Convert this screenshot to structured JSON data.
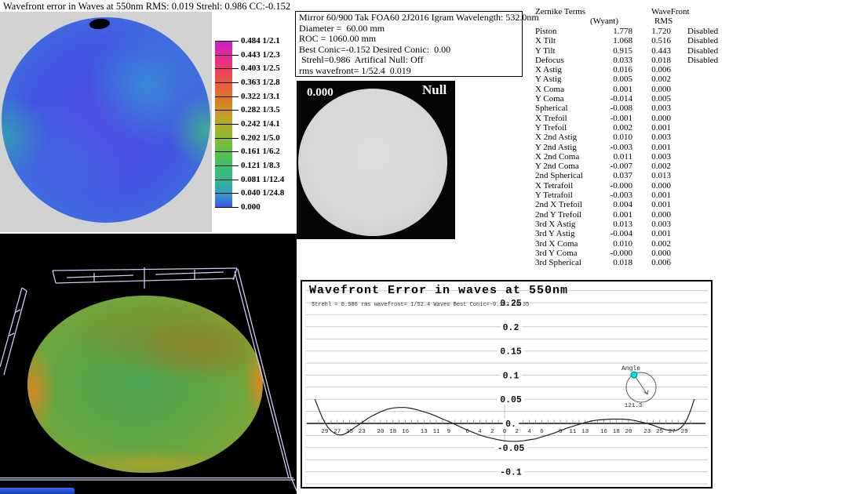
{
  "wavefront_map": {
    "title": "Wavefront error in Waves at 550nm  RMS: 0.019 Strehl: 0.986 CC:-0.152",
    "legend_labels": [
      "0.484 1/2.1",
      "0.443 1/2.3",
      "0.403 1/2.5",
      "0.363 1/2.8",
      "0.322 1/3.1",
      "0.282 1/3.5",
      "0.242 1/4.1",
      "0.202 1/5.0",
      "0.161 1/6.2",
      "0.121 1/8.3",
      "0.081 1/12.4",
      "0.040 1/24.8",
      "0.000"
    ],
    "colorbar_colors": [
      "#c624c6",
      "#e0289a",
      "#ee3a6a",
      "#ea5840",
      "#dd7526",
      "#cf9422",
      "#b3ad28",
      "#8abb33",
      "#5bbf4a",
      "#3fc06a",
      "#2fba90",
      "#2f9fc0",
      "#3f55e8"
    ]
  },
  "info_box": {
    "lines": [
      "Mirror 60/900 Tak FOA60 2J2016 Igram Wavelength: 532.0nm",
      "Diameter =  60.00 mm",
      "ROC = 1060.00 mm",
      "Best Conic=-0.152 Desired Conic:  0.00",
      " Strehl=0.986  Artifical Null: Off",
      "rms wavefront= 1/52.4  0.019"
    ]
  },
  "interferogram": {
    "left_label": "0.000",
    "right_label": "Null"
  },
  "zernike_table": {
    "title": "Zernike Terms",
    "col_wyant": "(Wyant)",
    "col_wavefront": "WaveFront",
    "col_rms": "RMS",
    "rows": [
      {
        "name": "Piston",
        "wyant": "1.778",
        "rms": "1.720",
        "status": "Disabled"
      },
      {
        "name": "X Tilt",
        "wyant": "1.068",
        "rms": "0.516",
        "status": "Disabled"
      },
      {
        "name": "Y Tilt",
        "wyant": "0.915",
        "rms": "0.443",
        "status": "Disabled"
      },
      {
        "name": "Defocus",
        "wyant": "0.033",
        "rms": "0.018",
        "status": "Disabled"
      },
      {
        "name": "X Astig",
        "wyant": "0.016",
        "rms": "0.006",
        "status": ""
      },
      {
        "name": "Y Astig",
        "wyant": "0.005",
        "rms": "0.002",
        "status": ""
      },
      {
        "name": "X Coma",
        "wyant": "0.001",
        "rms": "0.000",
        "status": ""
      },
      {
        "name": "Y Coma",
        "wyant": "-0.014",
        "rms": "0.005",
        "status": ""
      },
      {
        "name": "Spherical",
        "wyant": "-0.008",
        "rms": "0.003",
        "status": ""
      },
      {
        "name": "X Trefoil",
        "wyant": "-0.001",
        "rms": "0.000",
        "status": ""
      },
      {
        "name": "Y Trefoil",
        "wyant": "0.002",
        "rms": "0.001",
        "status": ""
      },
      {
        "name": "X 2nd Astig",
        "wyant": "0.010",
        "rms": "0.003",
        "status": ""
      },
      {
        "name": "Y 2nd Astig",
        "wyant": "-0.003",
        "rms": "0.001",
        "status": ""
      },
      {
        "name": "X 2nd Coma",
        "wyant": "0.011",
        "rms": "0.003",
        "status": ""
      },
      {
        "name": "Y 2nd Coma",
        "wyant": "-0.007",
        "rms": "0.002",
        "status": ""
      },
      {
        "name": "2nd Spherical",
        "wyant": "0.037",
        "rms": "0.013",
        "status": ""
      },
      {
        "name": "X Tetrafoil",
        "wyant": "-0.000",
        "rms": "0.000",
        "status": ""
      },
      {
        "name": "Y Tetrafoil",
        "wyant": "-0.003",
        "rms": "0.001",
        "status": ""
      },
      {
        "name": "2nd X Trefoil",
        "wyant": "0.004",
        "rms": "0.001",
        "status": ""
      },
      {
        "name": "2nd Y Trefoil",
        "wyant": "0.001",
        "rms": "0.000",
        "status": ""
      },
      {
        "name": "3rd X Astig",
        "wyant": "0.013",
        "rms": "0.003",
        "status": ""
      },
      {
        "name": "3rd Y Astig",
        "wyant": "-0.004",
        "rms": "0.001",
        "status": ""
      },
      {
        "name": "3rd X Coma",
        "wyant": "0.010",
        "rms": "0.002",
        "status": ""
      },
      {
        "name": "3rd Y Coma",
        "wyant": "-0.000",
        "rms": "0.000",
        "status": ""
      },
      {
        "name": "3rd Spherical",
        "wyant": "0.018",
        "rms": "0.006",
        "status": ""
      }
    ]
  },
  "chart_data": {
    "type": "line",
    "title": "Wavefront Error in waves at 550nm",
    "subtitle": "Strehl = 0.986 rms wavefront= 1/52.4 Waves Best Conic=-0.152 19:35",
    "ylim": [
      -0.125,
      0.275
    ],
    "grid_step": 0.025,
    "y_ticks": [
      {
        "v": 0.25,
        "label": "0.25"
      },
      {
        "v": 0.2,
        "label": "0.2"
      },
      {
        "v": 0.15,
        "label": "0.15"
      },
      {
        "v": 0.1,
        "label": "0.1"
      },
      {
        "v": 0.05,
        "label": "0.05"
      },
      {
        "v": 0,
        "label": "0."
      },
      {
        "v": -0.05,
        "label": "-0.05"
      },
      {
        "v": -0.1,
        "label": "-0.1"
      }
    ],
    "x_ticks": [
      -29,
      -27,
      -25,
      -23,
      -20,
      -18,
      -16,
      -13,
      -11,
      -9,
      -6,
      -4,
      -2,
      0,
      2,
      4,
      6,
      9,
      11,
      13,
      16,
      18,
      20,
      23,
      25,
      27,
      29
    ],
    "xlim": [
      -30.6,
      30.6
    ],
    "series": [
      {
        "name": "wavefront radial profile",
        "points": [
          [
            -30.6,
            0.05
          ],
          [
            -30.2,
            0.037
          ],
          [
            -29.8,
            0.024
          ],
          [
            -29.4,
            0.012
          ],
          [
            -29,
            0.002
          ],
          [
            -28.5,
            -0.008
          ],
          [
            -28,
            -0.015
          ],
          [
            -27.5,
            -0.02
          ],
          [
            -27,
            -0.023
          ],
          [
            -26.5,
            -0.024
          ],
          [
            -26,
            -0.023
          ],
          [
            -25.5,
            -0.02
          ],
          [
            -25,
            -0.016
          ],
          [
            -24,
            -0.007
          ],
          [
            -23,
            0.002
          ],
          [
            -22,
            0.011
          ],
          [
            -21,
            0.018
          ],
          [
            -20,
            0.024
          ],
          [
            -19,
            0.029
          ],
          [
            -18,
            0.032
          ],
          [
            -17,
            0.033
          ],
          [
            -16,
            0.033
          ],
          [
            -15,
            0.031
          ],
          [
            -14,
            0.028
          ],
          [
            -13,
            0.024
          ],
          [
            -12,
            0.02
          ],
          [
            -11,
            0.015
          ],
          [
            -10,
            0.009
          ],
          [
            -9,
            0.004
          ],
          [
            -8,
            -0.002
          ],
          [
            -7,
            -0.008
          ],
          [
            -6,
            -0.014
          ],
          [
            -5,
            -0.019
          ],
          [
            -4,
            -0.024
          ],
          [
            -3,
            -0.028
          ],
          [
            -2,
            -0.031
          ],
          [
            -1,
            -0.034
          ],
          [
            0,
            -0.036
          ],
          [
            1,
            -0.037
          ],
          [
            2,
            -0.037
          ],
          [
            3,
            -0.036
          ],
          [
            4,
            -0.034
          ],
          [
            5,
            -0.032
          ],
          [
            6,
            -0.028
          ],
          [
            7,
            -0.024
          ],
          [
            8,
            -0.02
          ],
          [
            9,
            -0.015
          ],
          [
            10,
            -0.01
          ],
          [
            11,
            -0.006
          ],
          [
            12,
            -0.002
          ],
          [
            13,
            0.002
          ],
          [
            14,
            0.005
          ],
          [
            15,
            0.007
          ],
          [
            16,
            0.008
          ],
          [
            17,
            0.009
          ],
          [
            18,
            0.009
          ],
          [
            19,
            0.009
          ],
          [
            20,
            0.008
          ],
          [
            21,
            0.006
          ],
          [
            22,
            0.003
          ],
          [
            23,
            0.0
          ],
          [
            24,
            -0.004
          ],
          [
            25,
            -0.009
          ],
          [
            26,
            -0.013
          ],
          [
            27,
            -0.015
          ],
          [
            27.5,
            -0.015
          ],
          [
            28,
            -0.013
          ],
          [
            28.5,
            -0.008
          ],
          [
            29,
            -0.001
          ],
          [
            29.4,
            0.008
          ],
          [
            29.8,
            0.02
          ],
          [
            30.2,
            0.034
          ],
          [
            30.6,
            0.05
          ]
        ]
      }
    ],
    "angle_widget": {
      "label": "Angle",
      "value": "121.3",
      "dot_color": "#00e0e0"
    }
  }
}
